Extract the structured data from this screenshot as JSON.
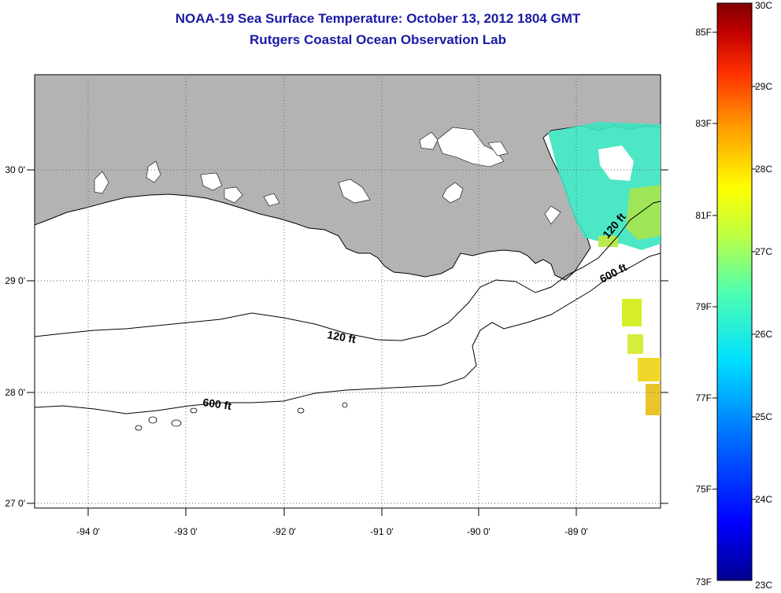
{
  "title": {
    "line1": "NOAA-19 Sea Surface Temperature:  October 13, 2012 1804 GMT",
    "line2": "Rutgers Coastal Ocean Observation Lab"
  },
  "map": {
    "lon_labels": [
      "-94 0'",
      "-93 0'",
      "-92 0'",
      "-91 0'",
      "-90 0'",
      "-89 0'"
    ],
    "lat_labels": [
      "30 0'",
      "29 0'",
      "28 0'",
      "27 0'"
    ],
    "contours": [
      {
        "depth_label": "120 ft"
      },
      {
        "depth_label": "600 ft"
      },
      {
        "depth_label": "120 ft"
      },
      {
        "depth_label": "600 ft"
      }
    ],
    "colors": {
      "land": "#b3b3b3",
      "water": "#ffffff",
      "title": "#1a1aa6"
    }
  },
  "colorbar": {
    "fahrenheit_labels": [
      "85F",
      "83F",
      "81F",
      "79F",
      "77F",
      "75F",
      "73F"
    ],
    "celsius_labels": [
      "30C",
      "29C",
      "28C",
      "27C",
      "26C",
      "25C",
      "24C",
      "23C"
    ],
    "colors": [
      "#00008f",
      "#0000ff",
      "#0070ff",
      "#00dfff",
      "#50ffaf",
      "#c0ff40",
      "#ffff00",
      "#ffa000",
      "#ff3000",
      "#c00000",
      "#800000"
    ]
  }
}
